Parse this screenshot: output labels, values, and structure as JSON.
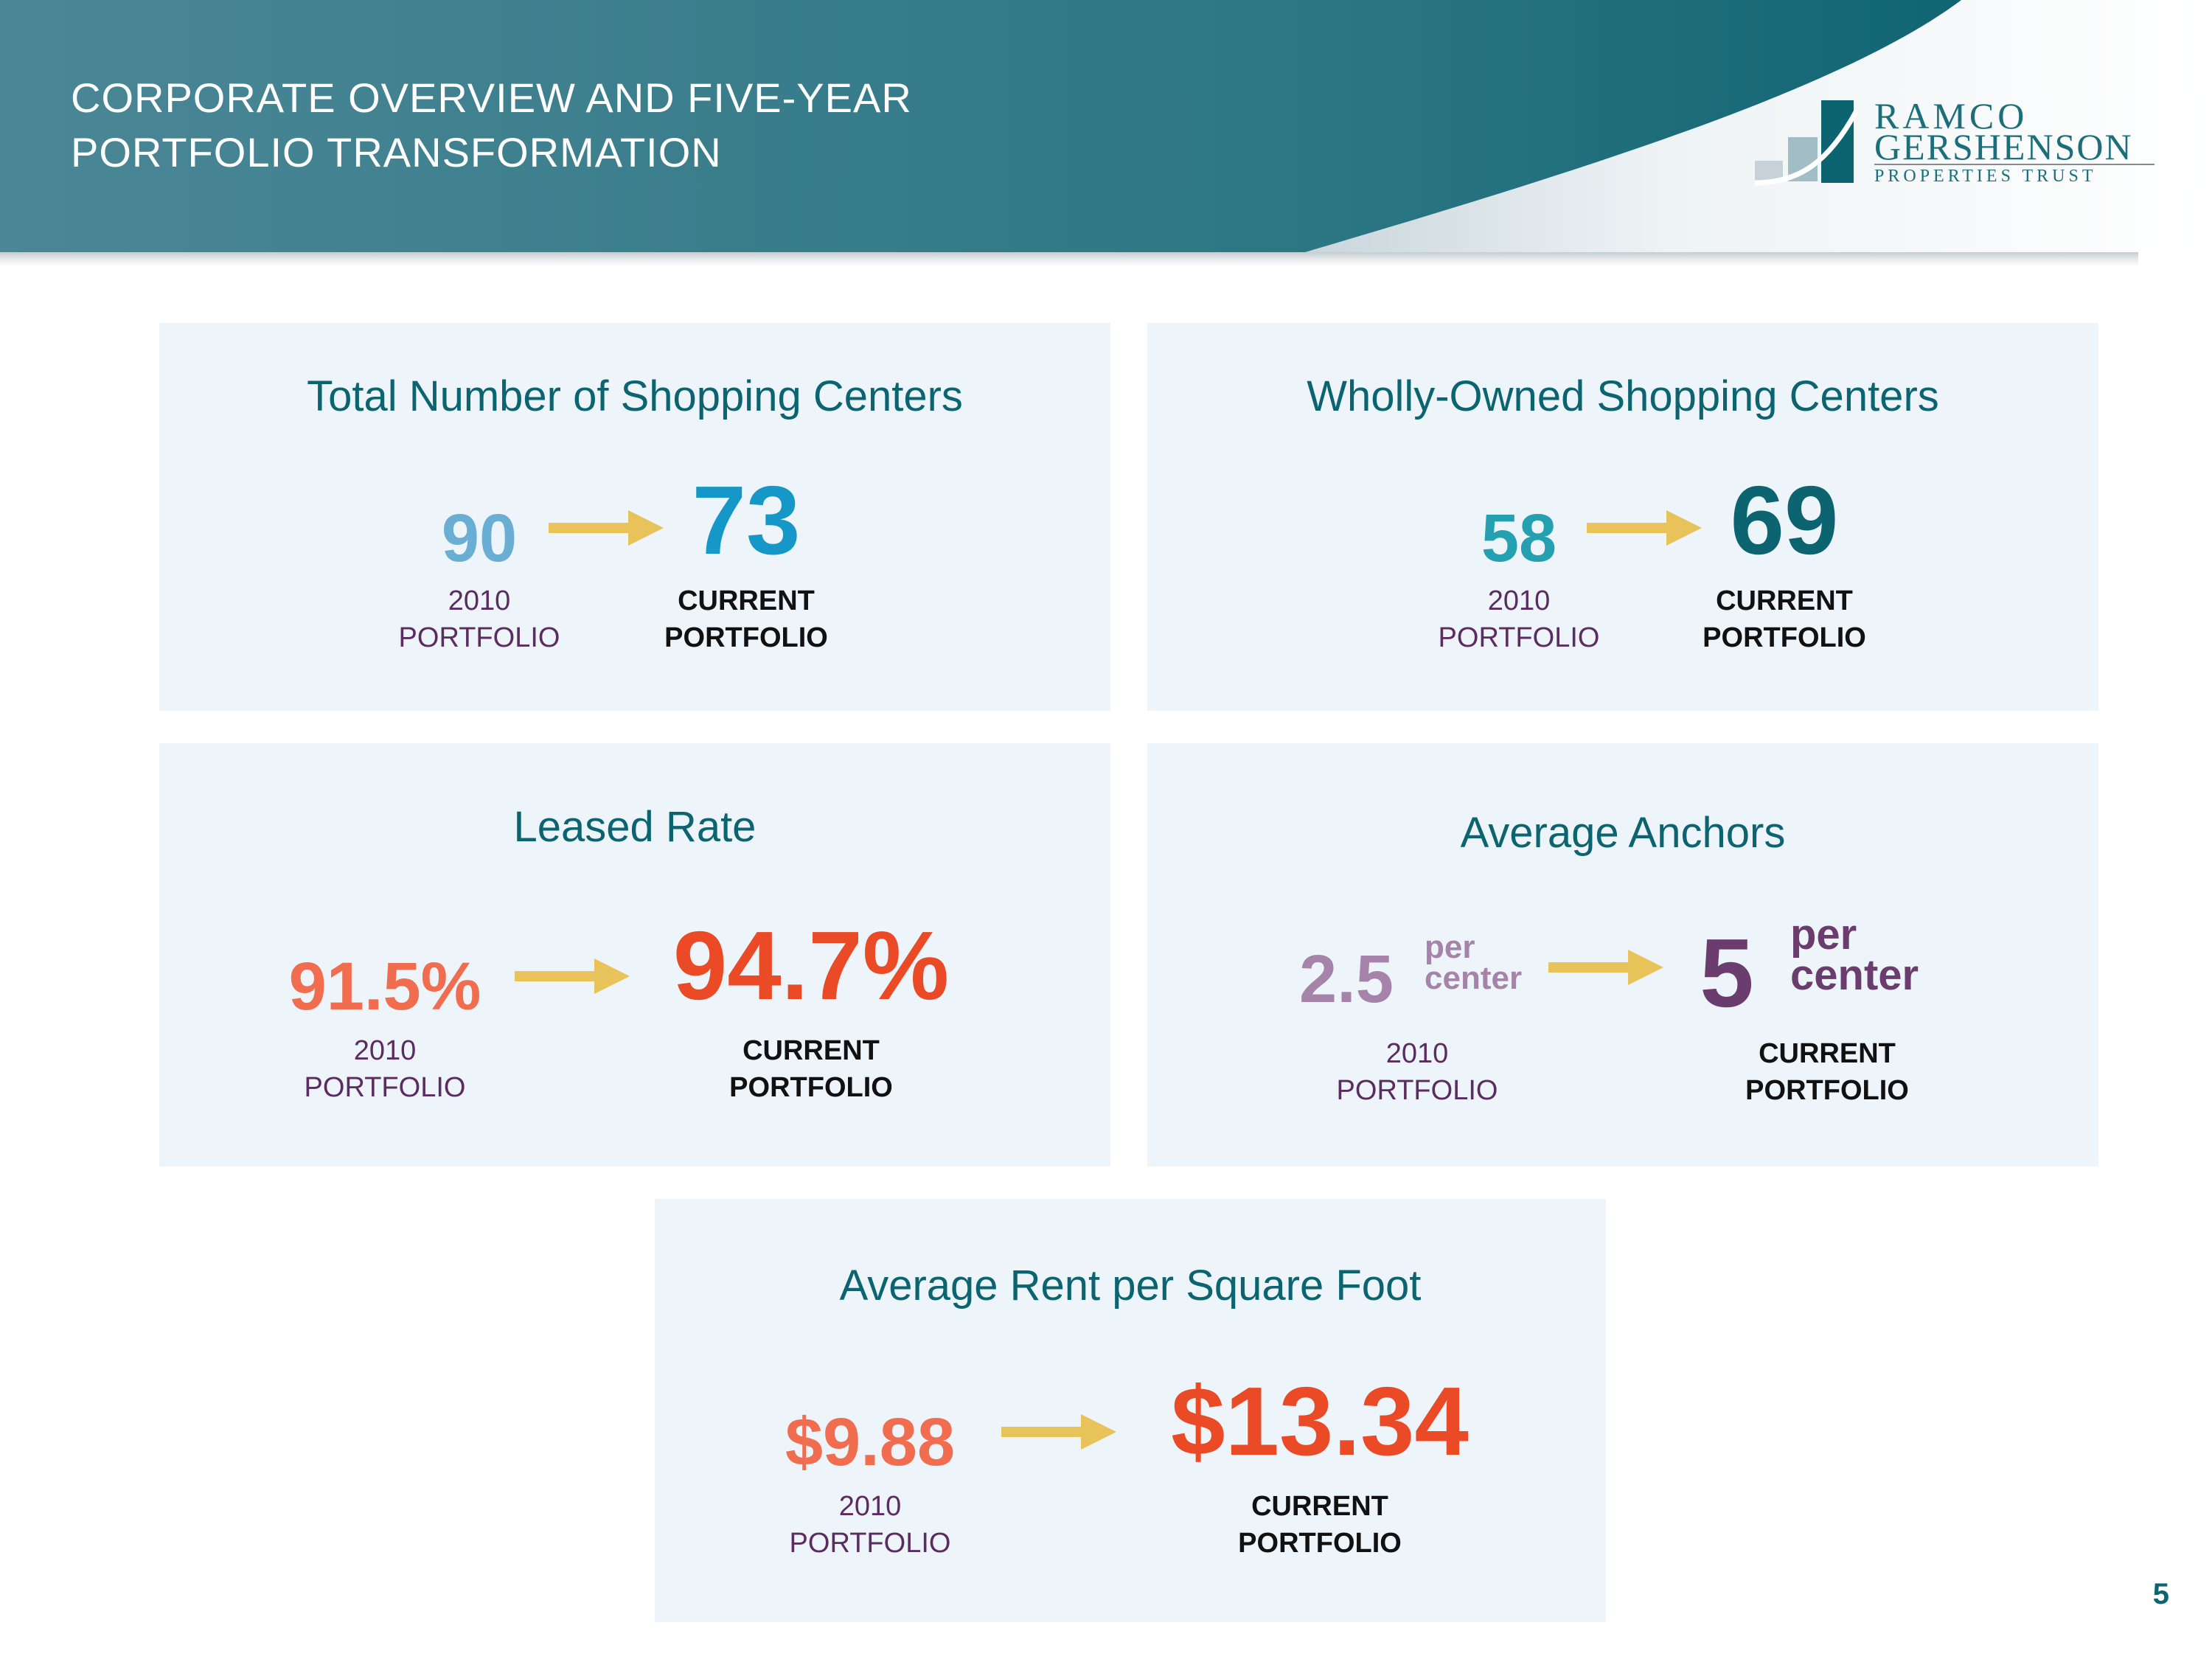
{
  "header": {
    "title_line1": "CORPORATE OVERVIEW AND FIVE-YEAR",
    "title_line2": "PORTFOLIO TRANSFORMATION"
  },
  "logo": {
    "line1": "RAMCO",
    "line2": "GERSHENSON",
    "line3": "PROPERTIES TRUST"
  },
  "colors": {
    "header_dark": "#0e5f6d",
    "header_light": "#4b8796",
    "card_bg": "#edf4fa",
    "card_title": "#0b6470",
    "arrow": "#e8c35a",
    "label_old": "#5b2c5f",
    "label_new": "#111111"
  },
  "cards": {
    "total_centers": {
      "title": "Total Number of Shopping Centers",
      "old_value": "90",
      "old_color": "#6aaed3",
      "old_label_1": "2010",
      "old_label_2": "PORTFOLIO",
      "new_value": "73",
      "new_color": "#1597c7",
      "new_label_1": "CURRENT",
      "new_label_2": "PORTFOLIO"
    },
    "wholly_owned": {
      "title": "Wholly-Owned Shopping Centers",
      "old_value": "58",
      "old_color": "#24a0b0",
      "old_label_1": "2010",
      "old_label_2": "PORTFOLIO",
      "new_value": "69",
      "new_color": "#0b6470",
      "new_label_1": "CURRENT",
      "new_label_2": "PORTFOLIO"
    },
    "leased_rate": {
      "title": "Leased Rate",
      "old_value": "91.5%",
      "old_color": "#f06d4f",
      "old_label_1": "2010",
      "old_label_2": "PORTFOLIO",
      "new_value": "94.7%",
      "new_color": "#ea4a25",
      "new_label_1": "CURRENT",
      "new_label_2": "PORTFOLIO"
    },
    "avg_anchors": {
      "title": "Average Anchors",
      "old_value": "2.5",
      "old_suffix_1": "per",
      "old_suffix_2": "center",
      "old_color": "#a683a8",
      "old_label_1": "2010",
      "old_label_2": "PORTFOLIO",
      "new_value": "5",
      "new_suffix_1": "per",
      "new_suffix_2": "center",
      "new_color": "#6b3d6e",
      "new_label_1": "CURRENT",
      "new_label_2": "PORTFOLIO"
    },
    "avg_rent": {
      "title": "Average Rent per Square Foot",
      "old_value": "$9.88",
      "old_color": "#f06d4f",
      "old_label_1": "2010",
      "old_label_2": "PORTFOLIO",
      "new_value": "$13.34",
      "new_color": "#ea4a25",
      "new_label_1": "CURRENT",
      "new_label_2": "PORTFOLIO"
    }
  },
  "page_number": "5"
}
